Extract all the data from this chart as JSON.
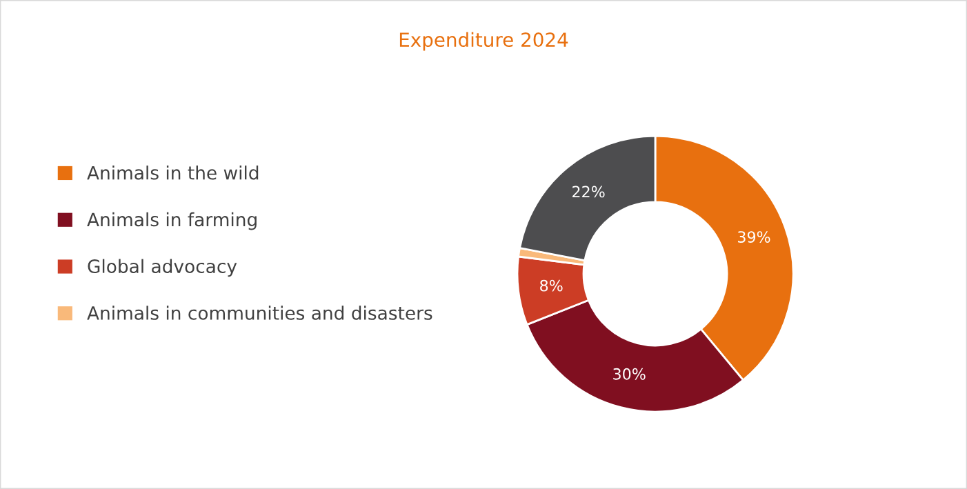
{
  "chart_data": {
    "type": "donut",
    "title": "Expenditure 2024",
    "categories": [
      "Animals in the wild",
      "Animals in farming",
      "Global advocacy",
      "Animals in communities and disasters",
      null
    ],
    "values": [
      39,
      30,
      8,
      1,
      22
    ],
    "colors": [
      "#e8700f",
      "#800f20",
      "#cc3d25",
      "#f9b97a",
      "#4d4d4f"
    ],
    "value_labels": [
      "39%",
      "30%",
      "8%",
      null,
      "22%"
    ],
    "legend": "left"
  }
}
